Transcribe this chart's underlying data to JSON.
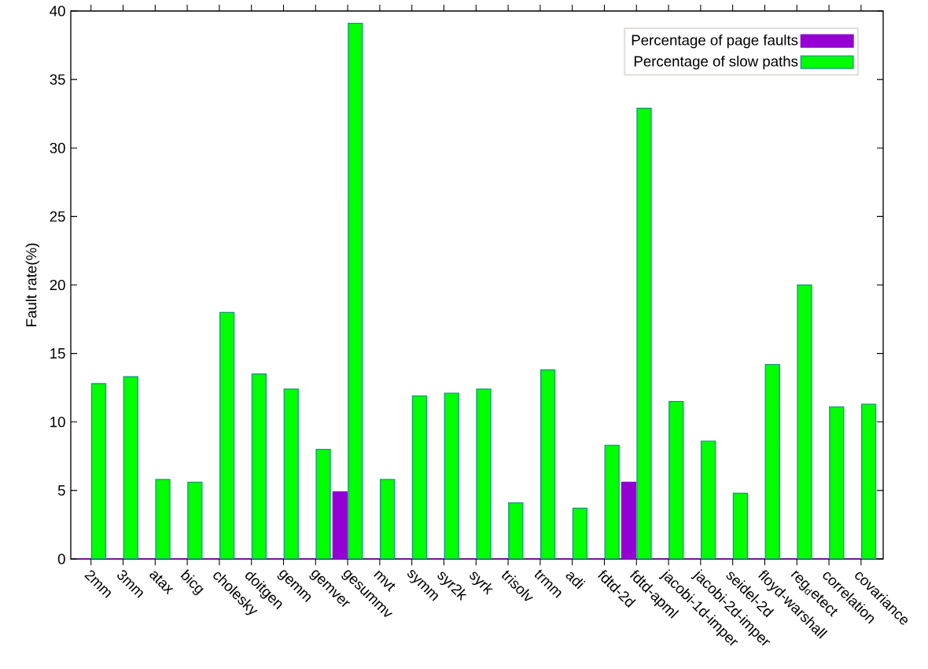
{
  "chart_data": {
    "type": "bar",
    "ylabel": "Fault rate(%)",
    "categories": [
      "2mm",
      "3mm",
      "atax",
      "bicg",
      "cholesky",
      "doitgen",
      "gemm",
      "gemver",
      "gesummv",
      "mvt",
      "symm",
      "syr2k",
      "syrk",
      "trisolv",
      "trmm",
      "adi",
      "fdtd-2d",
      "fdtd-apml",
      "jacobi-1d-imper",
      "jacobi-2d-imper",
      "seidel-2d",
      "floyd-warshall",
      "reg$_{d}$etect",
      "correlation",
      "covariance"
    ],
    "series": [
      {
        "name": "Percentage of page faults",
        "color": "#9400d3",
        "values": [
          0,
          0,
          0,
          0,
          0,
          0,
          0,
          0,
          4.9,
          0,
          0,
          0,
          0,
          0,
          0,
          0,
          0,
          5.6,
          0,
          0,
          0,
          0,
          0,
          0,
          0
        ]
      },
      {
        "name": "Percentage of slow paths",
        "color": "#00ff00",
        "values": [
          12.8,
          13.3,
          5.8,
          5.6,
          18.0,
          13.5,
          12.4,
          8.0,
          39.1,
          5.8,
          11.9,
          12.1,
          12.4,
          4.1,
          13.8,
          3.7,
          8.3,
          32.9,
          11.5,
          8.6,
          4.8,
          14.2,
          20.0,
          11.1,
          11.3
        ]
      }
    ],
    "ylim": [
      0,
      40
    ],
    "yticks": [
      0,
      5,
      10,
      15,
      20,
      25,
      30,
      35,
      40
    ],
    "legend": "top right",
    "grid": false
  }
}
